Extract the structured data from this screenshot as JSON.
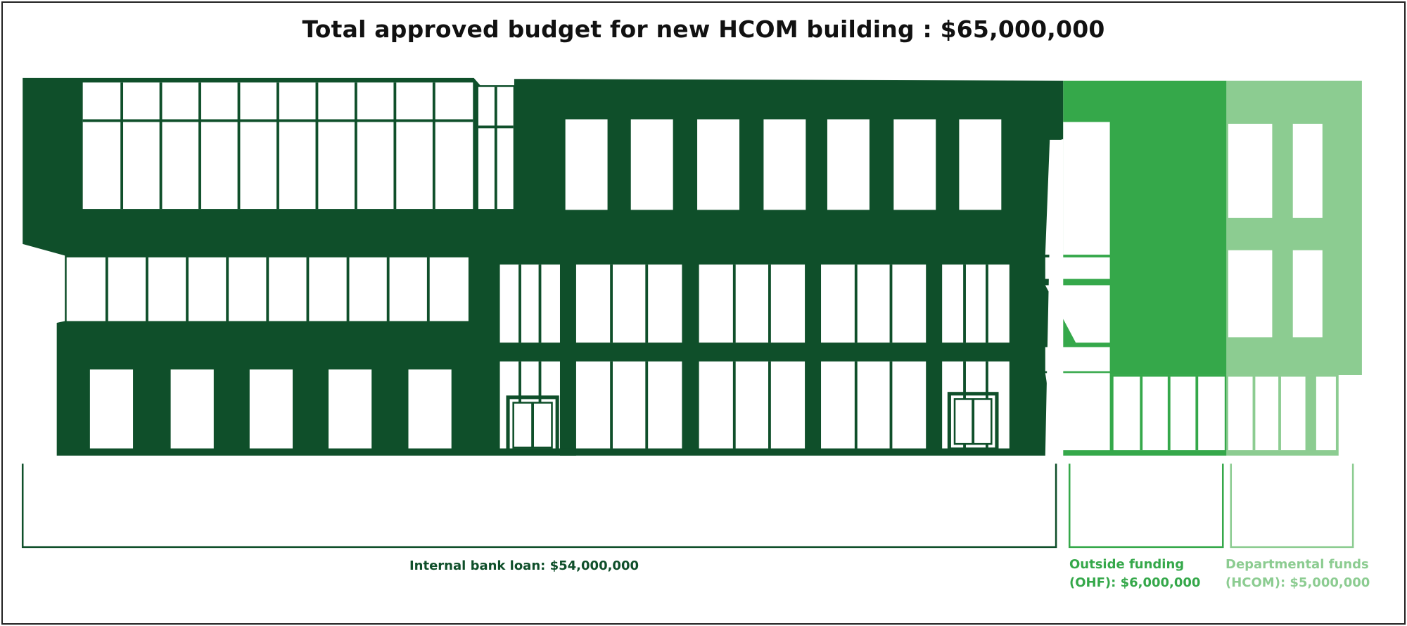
{
  "title": "Total approved budget for new HCOM building : $65,000,000",
  "colors": {
    "internal_bank_loan": "#0f4f2a",
    "outside_funding": "#35a84a",
    "departmental_funds": "#8ccc91"
  },
  "labels": {
    "loan": "Internal bank loan: $54,000,000",
    "ohf_line1": "Outside funding",
    "ohf_line2": "(OHF): $6,000,000",
    "dept_line1": "Departmental funds",
    "dept_line2": "(HCOM): $5,000,000"
  },
  "chart_data": {
    "type": "bar",
    "orientation": "horizontal-stacked",
    "title": "Total approved budget for new HCOM building : $65,000,000",
    "total": 65000000,
    "categories": [
      "Internal bank loan",
      "Outside funding (OHF)",
      "Departmental funds (HCOM)"
    ],
    "values": [
      54000000,
      6000000,
      5000000
    ],
    "colors": [
      "#0f4f2a",
      "#35a84a",
      "#8ccc91"
    ]
  }
}
